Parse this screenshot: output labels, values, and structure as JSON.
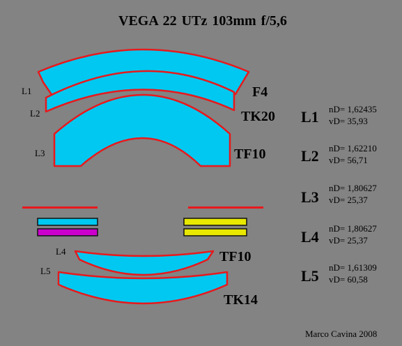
{
  "title": "VEGA 22 UTz  103mm  f/5,6",
  "credit": "Marco Cavina 2008",
  "colors": {
    "background": "#838383",
    "glass_fill": "#00c8f0",
    "outline": "#e8191c",
    "filter_cyan": "#00c8f0",
    "filter_magenta": "#cc00cc",
    "filter_yellow": "#e8e800"
  },
  "diagram": {
    "element_labels": [
      "L1",
      "L2",
      "L3",
      "L4",
      "L5"
    ],
    "glass_types": [
      "F4",
      "TK20",
      "TF10",
      "TF10",
      "TK14"
    ]
  },
  "specs": [
    {
      "name": "L1",
      "nD": "nD= 1,62435",
      "vD": "vD= 35,93"
    },
    {
      "name": "L2",
      "nD": "nD= 1,62210",
      "vD": "vD= 56,71"
    },
    {
      "name": "L3",
      "nD": "nD= 1,80627",
      "vD": "vD= 25,37"
    },
    {
      "name": "L4",
      "nD": "nD= 1,80627",
      "vD": "vD= 25,37"
    },
    {
      "name": "L5",
      "nD": "nD= 1,61309",
      "vD": "vD= 60,58"
    }
  ]
}
